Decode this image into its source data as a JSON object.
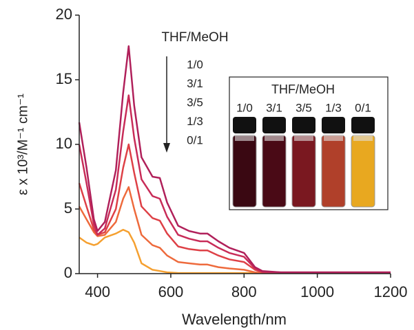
{
  "chart_data": {
    "type": "line",
    "x_label": "Wavelength/nm",
    "y_label": "ε x 10³/M⁻¹ cm⁻¹",
    "legend_title": "THF/MeOH",
    "xlim": [
      350,
      1200
    ],
    "ylim": [
      0,
      20
    ],
    "xticks": [
      400,
      600,
      800,
      1000,
      1200
    ],
    "yticks": [
      0,
      5,
      10,
      15,
      20
    ],
    "x": [
      350,
      370,
      390,
      400,
      420,
      450,
      470,
      485,
      500,
      520,
      550,
      570,
      590,
      620,
      650,
      680,
      700,
      730,
      760,
      800,
      830,
      850,
      900,
      1000,
      1200
    ],
    "series": [
      {
        "name": "1/0",
        "color": "#b0205a",
        "values": [
          11.7,
          8.2,
          4.2,
          3.3,
          4.0,
          8.0,
          14.0,
          17.6,
          13.0,
          9.0,
          7.5,
          7.4,
          5.5,
          3.7,
          3.3,
          3.1,
          3.1,
          2.5,
          2.0,
          1.6,
          0.5,
          0.2,
          0.1,
          0.1,
          0.1
        ]
      },
      {
        "name": "3/1",
        "color": "#c82c58",
        "values": [
          10.0,
          7.0,
          3.8,
          3.0,
          3.5,
          6.5,
          11.0,
          13.8,
          10.5,
          7.3,
          6.0,
          5.8,
          4.4,
          3.0,
          2.7,
          2.5,
          2.5,
          2.0,
          1.6,
          1.3,
          0.4,
          0.15,
          0.1,
          0.1,
          0.1
        ]
      },
      {
        "name": "3/5",
        "color": "#de4046",
        "values": [
          7.0,
          5.2,
          3.4,
          3.0,
          3.2,
          5.0,
          8.2,
          10.0,
          7.8,
          5.2,
          4.3,
          4.1,
          3.1,
          2.1,
          1.9,
          1.8,
          1.8,
          1.4,
          1.1,
          0.9,
          0.3,
          0.1,
          0.05,
          0.05,
          0.05
        ]
      },
      {
        "name": "1/3",
        "color": "#ee6a3c",
        "values": [
          5.2,
          4.2,
          3.2,
          2.9,
          3.0,
          4.0,
          5.8,
          6.7,
          5.0,
          3.0,
          2.2,
          2.0,
          1.4,
          0.9,
          0.8,
          0.7,
          0.7,
          0.5,
          0.4,
          0.3,
          0.1,
          0.05,
          0.05,
          0.05,
          0.05
        ]
      },
      {
        "name": "0/1",
        "color": "#f5a030",
        "values": [
          2.8,
          2.4,
          2.2,
          2.3,
          2.8,
          3.1,
          3.4,
          3.2,
          2.4,
          0.8,
          0.3,
          0.2,
          0.1,
          0.05,
          0.05,
          0.05,
          0.05,
          0.05,
          0.05,
          0.05,
          0.05,
          0.05,
          0.05,
          0.05,
          0.05
        ]
      }
    ]
  }
}
